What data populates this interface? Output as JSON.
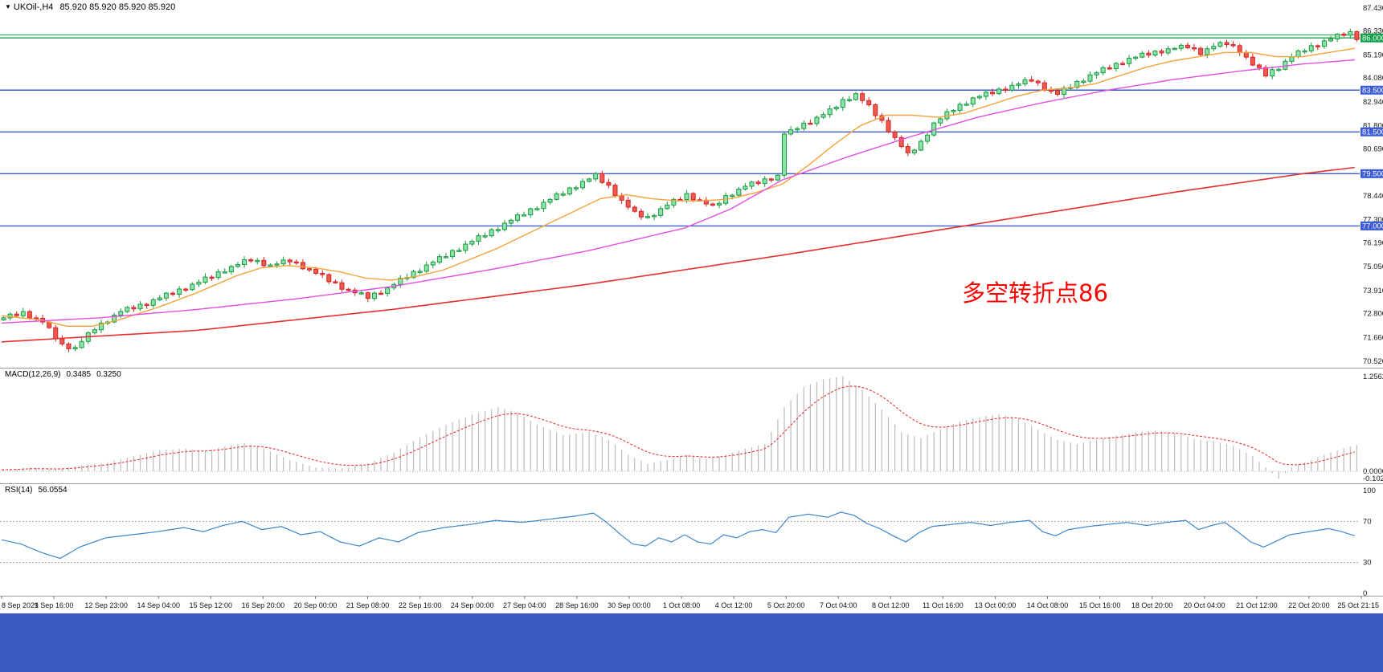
{
  "window": {
    "bottom_bar_color": "#3b5bc0",
    "background": "#ffffff"
  },
  "symbol_bar": {
    "dropdown_glyph": "▼",
    "symbol": "UKOil-,H4",
    "ohlc": "85.920 85.920 85.920 85.920"
  },
  "chart_data": [
    {
      "type": "candlestick",
      "name": "price",
      "title": "UKOil-,H4",
      "ylim": [
        70.52,
        87.43
      ],
      "y_ticks": [
        "87.430",
        "86.330",
        "85.190",
        "84.080",
        "82.940",
        "81.800",
        "80.690",
        "79.560",
        "78.440",
        "77.300",
        "76.190",
        "75.050",
        "73.910",
        "72.800",
        "71.660",
        "70.520"
      ],
      "levels": [
        {
          "value": 86.14,
          "color": "#14a04a",
          "label": null,
          "badge_color": null
        },
        {
          "value": 86.0,
          "color": "#14a04a",
          "label": "86.000",
          "badge_color": "#0ea14a"
        },
        {
          "value": 83.5,
          "color": "#3b5bd8",
          "label": "83.500",
          "badge_color": "#3b5bd8"
        },
        {
          "value": 81.5,
          "color": "#3b5bd8",
          "label": "81.500",
          "badge_color": "#3b5bd8"
        },
        {
          "value": 79.5,
          "color": "#3b5bd8",
          "label": "79.500",
          "badge_color": "#3b5bd8"
        },
        {
          "value": 77.0,
          "color": "#3b5bd8",
          "label": "77.000",
          "badge_color": "#3b5bd8"
        }
      ],
      "first_open": 72.5,
      "wick": 0.13,
      "colors": {
        "bull_border": "#169a3e",
        "bull_fill": "#8fe2ac",
        "bear_border": "#d32424",
        "bear_fill": "#ee5a4e"
      },
      "closes": [
        72.6,
        72.78,
        72.7,
        72.9,
        72.6,
        72.58,
        72.4,
        72.13,
        71.6,
        71.35,
        71.12,
        71.18,
        71.47,
        71.88,
        72.03,
        72.35,
        72.4,
        72.73,
        72.9,
        73.1,
        73.03,
        73.25,
        73.2,
        73.46,
        73.55,
        73.78,
        73.73,
        73.98,
        73.95,
        74.21,
        74.3,
        74.55,
        74.53,
        74.8,
        74.8,
        75.06,
        75.15,
        75.38,
        75.33,
        75.35,
        75.1,
        75.13,
        75.18,
        75.37,
        75.28,
        75.25,
        74.95,
        74.93,
        74.73,
        74.67,
        74.33,
        74.28,
        73.97,
        73.93,
        73.8,
        73.8,
        73.53,
        73.78,
        73.77,
        74.03,
        74.2,
        74.5,
        74.53,
        74.82,
        74.83,
        75.13,
        75.27,
        75.53,
        75.53,
        75.82,
        75.83,
        76.13,
        76.27,
        76.53,
        76.53,
        76.82,
        76.83,
        77.13,
        77.27,
        77.53,
        77.53,
        77.82,
        77.83,
        78.13,
        78.27,
        78.53,
        78.53,
        78.82,
        78.83,
        79.13,
        79.25,
        79.5,
        79.08,
        78.95,
        78.45,
        78.23,
        77.9,
        77.7,
        77.43,
        77.45,
        77.5,
        77.83,
        78.0,
        78.27,
        78.26,
        78.55,
        78.25,
        78.23,
        78.05,
        78.0,
        78.08,
        78.45,
        78.47,
        78.76,
        78.9,
        79.1,
        79.03,
        79.25,
        79.2,
        79.43,
        81.4,
        81.6,
        81.66,
        81.92,
        81.9,
        82.2,
        82.33,
        82.6,
        82.68,
        83.05,
        83.05,
        83.33,
        83.0,
        82.8,
        82.28,
        82.05,
        81.5,
        81.23,
        80.8,
        80.5,
        80.63,
        81.05,
        81.35,
        81.93,
        82.13,
        82.47,
        82.53,
        82.82,
        82.83,
        83.13,
        83.2,
        83.4,
        83.33,
        83.55,
        83.5,
        83.73,
        83.8,
        84.0,
        83.93,
        83.85,
        83.5,
        83.48,
        83.3,
        83.6,
        83.63,
        83.92,
        83.93,
        84.23,
        84.33,
        84.57,
        84.53,
        84.78,
        84.77,
        85.03,
        85.08,
        85.27,
        85.18,
        85.37,
        85.28,
        85.48,
        85.5,
        85.65,
        85.53,
        85.5,
        85.2,
        85.48,
        85.6,
        85.78,
        85.68,
        85.63,
        85.3,
        85.08,
        84.7,
        84.58,
        84.18,
        84.48,
        84.5,
        84.88,
        85.1,
        85.38,
        85.38,
        85.63,
        85.6,
        85.86,
        85.95,
        86.18,
        86.13,
        86.3,
        85.92
      ],
      "moving_averages": [
        {
          "name": "ma-fast",
          "color": "#f2a33c",
          "points": [
            [
              0,
              72.7
            ],
            [
              6,
              72.5
            ],
            [
              10,
              72.2
            ],
            [
              14,
              72.2
            ],
            [
              18,
              72.5
            ],
            [
              24,
              73.1
            ],
            [
              30,
              73.8
            ],
            [
              36,
              74.6
            ],
            [
              40,
              75.0
            ],
            [
              44,
              75.1
            ],
            [
              48,
              75.0
            ],
            [
              52,
              74.8
            ],
            [
              56,
              74.5
            ],
            [
              60,
              74.4
            ],
            [
              64,
              74.6
            ],
            [
              68,
              74.9
            ],
            [
              72,
              75.4
            ],
            [
              76,
              75.9
            ],
            [
              80,
              76.5
            ],
            [
              84,
              77.1
            ],
            [
              88,
              77.7
            ],
            [
              92,
              78.3
            ],
            [
              96,
              78.5
            ],
            [
              100,
              78.3
            ],
            [
              104,
              78.2
            ],
            [
              108,
              78.2
            ],
            [
              112,
              78.3
            ],
            [
              116,
              78.6
            ],
            [
              120,
              79.0
            ],
            [
              124,
              79.9
            ],
            [
              128,
              80.9
            ],
            [
              132,
              81.8
            ],
            [
              136,
              82.3
            ],
            [
              140,
              82.3
            ],
            [
              144,
              82.2
            ],
            [
              148,
              82.4
            ],
            [
              152,
              82.8
            ],
            [
              156,
              83.2
            ],
            [
              160,
              83.5
            ],
            [
              164,
              83.6
            ],
            [
              168,
              83.8
            ],
            [
              172,
              84.2
            ],
            [
              176,
              84.6
            ],
            [
              180,
              84.9
            ],
            [
              184,
              85.1
            ],
            [
              188,
              85.3
            ],
            [
              192,
              85.3
            ],
            [
              196,
              85.1
            ],
            [
              200,
              85.1
            ],
            [
              204,
              85.3
            ],
            [
              208,
              85.5
            ]
          ]
        },
        {
          "name": "ma-mid",
          "color": "#e34fe0",
          "points": [
            [
              0,
              72.35
            ],
            [
              15,
              72.6
            ],
            [
              30,
              73.0
            ],
            [
              45,
              73.5
            ],
            [
              60,
              74.1
            ],
            [
              75,
              74.9
            ],
            [
              90,
              75.8
            ],
            [
              105,
              76.9
            ],
            [
              112,
              77.8
            ],
            [
              120,
              79.2
            ],
            [
              130,
              80.3
            ],
            [
              140,
              81.3
            ],
            [
              150,
              82.2
            ],
            [
              160,
              82.9
            ],
            [
              170,
              83.5
            ],
            [
              180,
              84.0
            ],
            [
              190,
              84.4
            ],
            [
              200,
              84.75
            ],
            [
              208,
              84.95
            ]
          ]
        },
        {
          "name": "ma-slow",
          "color": "#e53030",
          "points": [
            [
              0,
              71.45
            ],
            [
              30,
              72.0
            ],
            [
              60,
              73.0
            ],
            [
              90,
              74.2
            ],
            [
              120,
              75.6
            ],
            [
              150,
              77.1
            ],
            [
              180,
              78.6
            ],
            [
              200,
              79.5
            ],
            [
              208,
              79.8
            ]
          ]
        }
      ],
      "annotation": {
        "text": "多空转折点86",
        "color": "#ff0000",
        "x": 1197,
        "y": 375,
        "font_size": 29
      }
    },
    {
      "type": "bar",
      "name": "macd",
      "indicator_label": "MACD(12,26,9)",
      "macd_value": "0.3485",
      "signal_value": "0.3250",
      "y_ticks": [
        "1.2562",
        "0.0000",
        "-0.1023"
      ],
      "ylim": [
        -0.1023,
        1.2562
      ],
      "bar_color": "#bcbcbc",
      "signal_color": "#e53935",
      "hist_waypoints": [
        [
          0,
          0.02
        ],
        [
          4,
          0.05
        ],
        [
          8,
          0.02
        ],
        [
          12,
          0.08
        ],
        [
          16,
          0.12
        ],
        [
          20,
          0.2
        ],
        [
          24,
          0.28
        ],
        [
          28,
          0.3
        ],
        [
          31,
          0.27
        ],
        [
          34,
          0.33
        ],
        [
          37,
          0.38
        ],
        [
          40,
          0.3
        ],
        [
          44,
          0.15
        ],
        [
          48,
          0.05
        ],
        [
          52,
          0.04
        ],
        [
          56,
          0.1
        ],
        [
          60,
          0.25
        ],
        [
          64,
          0.45
        ],
        [
          68,
          0.62
        ],
        [
          72,
          0.75
        ],
        [
          76,
          0.85
        ],
        [
          79,
          0.78
        ],
        [
          82,
          0.62
        ],
        [
          86,
          0.48
        ],
        [
          90,
          0.52
        ],
        [
          93,
          0.42
        ],
        [
          96,
          0.22
        ],
        [
          99,
          0.1
        ],
        [
          102,
          0.15
        ],
        [
          105,
          0.22
        ],
        [
          108,
          0.16
        ],
        [
          111,
          0.22
        ],
        [
          114,
          0.3
        ],
        [
          117,
          0.36
        ],
        [
          120,
          0.85
        ],
        [
          123,
          1.12
        ],
        [
          126,
          1.22
        ],
        [
          129,
          1.26
        ],
        [
          132,
          1.08
        ],
        [
          135,
          0.82
        ],
        [
          138,
          0.52
        ],
        [
          141,
          0.44
        ],
        [
          144,
          0.56
        ],
        [
          147,
          0.66
        ],
        [
          150,
          0.72
        ],
        [
          153,
          0.76
        ],
        [
          156,
          0.7
        ],
        [
          159,
          0.55
        ],
        [
          162,
          0.42
        ],
        [
          165,
          0.36
        ],
        [
          168,
          0.42
        ],
        [
          171,
          0.47
        ],
        [
          174,
          0.52
        ],
        [
          177,
          0.54
        ],
        [
          180,
          0.5
        ],
        [
          183,
          0.43
        ],
        [
          186,
          0.4
        ],
        [
          189,
          0.34
        ],
        [
          192,
          0.2
        ],
        [
          194,
          0.05
        ],
        [
          196,
          -0.1
        ],
        [
          198,
          0.05
        ],
        [
          201,
          0.15
        ],
        [
          204,
          0.25
        ],
        [
          207,
          0.33
        ],
        [
          208,
          0.35
        ]
      ]
    },
    {
      "type": "line",
      "name": "rsi",
      "indicator_label": "RSI(14)",
      "value": "56.0554",
      "y_ticks": [
        "100",
        "70",
        "30",
        "0"
      ],
      "ylim": [
        0,
        100
      ],
      "levels": [
        70,
        30
      ],
      "line_color": "#3d85cc",
      "points": [
        [
          0,
          52
        ],
        [
          3,
          48
        ],
        [
          6,
          40
        ],
        [
          9,
          34
        ],
        [
          12,
          45
        ],
        [
          16,
          54
        ],
        [
          20,
          57
        ],
        [
          24,
          60
        ],
        [
          28,
          64
        ],
        [
          31,
          60
        ],
        [
          34,
          66
        ],
        [
          37,
          70
        ],
        [
          40,
          62
        ],
        [
          43,
          65
        ],
        [
          46,
          57
        ],
        [
          49,
          60
        ],
        [
          52,
          50
        ],
        [
          55,
          46
        ],
        [
          58,
          54
        ],
        [
          61,
          50
        ],
        [
          64,
          59
        ],
        [
          68,
          64
        ],
        [
          72,
          67
        ],
        [
          76,
          71
        ],
        [
          80,
          69
        ],
        [
          84,
          72
        ],
        [
          88,
          75
        ],
        [
          91,
          78
        ],
        [
          93,
          69
        ],
        [
          95,
          58
        ],
        [
          97,
          48
        ],
        [
          99,
          46
        ],
        [
          101,
          54
        ],
        [
          103,
          50
        ],
        [
          105,
          57
        ],
        [
          107,
          50
        ],
        [
          109,
          48
        ],
        [
          111,
          57
        ],
        [
          113,
          54
        ],
        [
          115,
          60
        ],
        [
          117,
          62
        ],
        [
          119,
          59
        ],
        [
          121,
          74
        ],
        [
          124,
          77
        ],
        [
          127,
          74
        ],
        [
          129,
          79
        ],
        [
          131,
          76
        ],
        [
          133,
          68
        ],
        [
          135,
          63
        ],
        [
          137,
          56
        ],
        [
          139,
          50
        ],
        [
          141,
          59
        ],
        [
          143,
          65
        ],
        [
          146,
          67
        ],
        [
          149,
          69
        ],
        [
          152,
          66
        ],
        [
          155,
          69
        ],
        [
          158,
          71
        ],
        [
          160,
          60
        ],
        [
          162,
          56
        ],
        [
          164,
          62
        ],
        [
          167,
          65
        ],
        [
          170,
          67
        ],
        [
          173,
          69
        ],
        [
          176,
          66
        ],
        [
          179,
          69
        ],
        [
          182,
          71
        ],
        [
          184,
          62
        ],
        [
          186,
          66
        ],
        [
          188,
          69
        ],
        [
          190,
          60
        ],
        [
          192,
          50
        ],
        [
          194,
          45
        ],
        [
          196,
          51
        ],
        [
          198,
          57
        ],
        [
          200,
          59
        ],
        [
          202,
          61
        ],
        [
          204,
          63
        ],
        [
          206,
          60
        ],
        [
          207,
          58
        ],
        [
          208,
          56.1
        ]
      ]
    }
  ],
  "time_axis": {
    "labels": [
      "8 Sep 2021",
      "9 Sep 16:00",
      "12 Sep 23:00",
      "14 Sep 04:00",
      "15 Sep 12:00",
      "16 Sep 20:00",
      "20 Sep 00:00",
      "21 Sep 08:00",
      "22 Sep 16:00",
      "24 Sep 00:00",
      "27 Sep 04:00",
      "28 Sep 16:00",
      "30 Sep 00:00",
      "1 Oct 08:00",
      "4 Oct 12:00",
      "5 Oct 20:00",
      "7 Oct 04:00",
      "8 Oct 12:00",
      "11 Oct 16:00",
      "13 Oct 00:00",
      "14 Oct 08:00",
      "15 Oct 16:00",
      "18 Oct 20:00",
      "20 Oct 04:00",
      "21 Oct 12:00",
      "22 Oct 20:00",
      "25 Oct 21:15"
    ]
  }
}
